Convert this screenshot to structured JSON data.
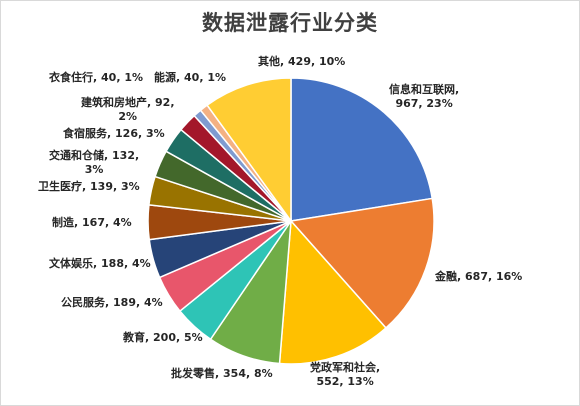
{
  "chart_data": {
    "type": "pie",
    "title": "数据泄露行业分类",
    "categories": [
      "信息和互联网",
      "金融",
      "党政军和社会",
      "批发零售",
      "教育",
      "公民服务",
      "文体娱乐",
      "制造",
      "卫生医疗",
      "交通和仓储",
      "食宿服务",
      "建筑和房地产",
      "衣食住行",
      "能源",
      "其他"
    ],
    "values": [
      967,
      687,
      552,
      354,
      200,
      189,
      188,
      167,
      139,
      132,
      126,
      92,
      40,
      40,
      429
    ],
    "percent_labels": [
      "23%",
      "16%",
      "13%",
      "8%",
      "5%",
      "4%",
      "4%",
      "4%",
      "3%",
      "3%",
      "3%",
      "2%",
      "1%",
      "1%",
      "10%"
    ],
    "colors": [
      "#4472C4",
      "#ED7D31",
      "#FFC000",
      "#70AD47",
      "#2EC4B6",
      "#E8566B",
      "#264478",
      "#9E480E",
      "#997300",
      "#43682B",
      "#1E6E64",
      "#A3172A",
      "#7F9BD0",
      "#F4B183",
      "#FFCD33"
    ],
    "data_labels": [
      "信息和互联网,\n967, 23%",
      "金融, 687, 16%",
      "党政军和社会,\n552, 13%",
      "批发零售, 354, 8%",
      "教育, 200, 5%",
      "公民服务, 189, 4%",
      "文体娱乐, 188, 4%",
      "制造, 167, 4%",
      "卫生医疗, 139, 3%",
      "交通和仓储, 132,\n3%",
      "食宿服务, 126, 3%",
      "建筑和房地产, 92,\n2%",
      "衣食住行, 40, 1%",
      "能源, 40, 1%",
      "其他, 429, 10%"
    ],
    "start_angle_deg": 0,
    "direction": "clockwise",
    "legend": "none"
  }
}
